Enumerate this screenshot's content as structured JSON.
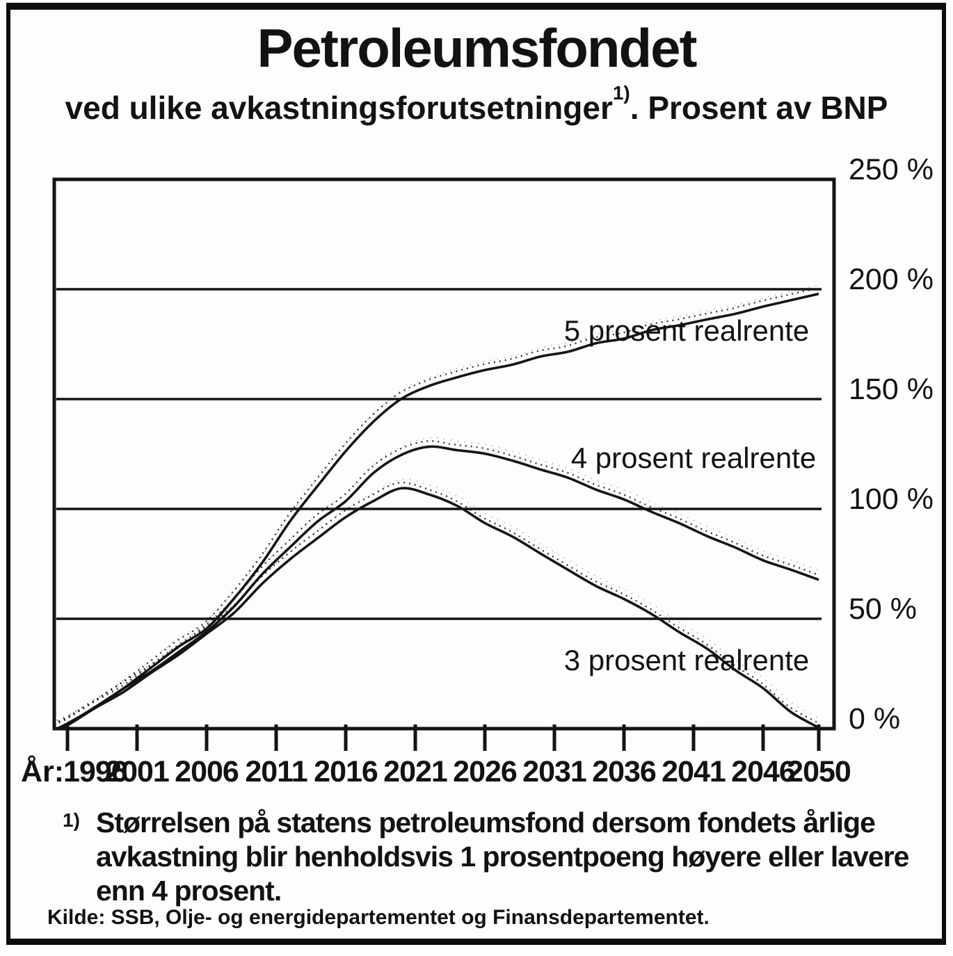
{
  "title": "Petroleumsfondet",
  "subtitle_prefix": "ved ulike avkastningsforutsetninger",
  "subtitle_superscript": "1)",
  "subtitle_suffix": ". Prosent av BNP",
  "x_axis_prefix": "År:",
  "footnote": {
    "marker": "1)",
    "lines": [
      "Størrelsen på statens petroleumsfond dersom fondets årlige",
      "avkastning blir henholdsvis 1 prosentpoeng høyere eller lavere",
      "enn 4 prosent."
    ]
  },
  "source": "Kilde: SSB, Olje- og energidepartementet og Finansdepartementet.",
  "colors": {
    "ink": "#141414",
    "paper": "#fdfdfc"
  },
  "chart_data": {
    "type": "line",
    "title": "Petroleumsfondet",
    "subtitle": "ved ulike avkastningsforutsetninger. Prosent av BNP",
    "xlabel": "År",
    "ylabel": "Prosent av BNP",
    "xlim": [
      1995,
      2051
    ],
    "ylim": [
      0,
      250
    ],
    "grid": "horizontal",
    "legend_position": "inline-labels",
    "x_ticks": [
      1996,
      2001,
      2006,
      2011,
      2016,
      2021,
      2026,
      2031,
      2036,
      2041,
      2046,
      2050
    ],
    "y_ticks_percent": [
      0,
      50,
      100,
      150,
      200,
      250
    ],
    "y_tick_label_suffix": " %",
    "x": [
      1996,
      1998,
      2000,
      2002,
      2004,
      2006,
      2008,
      2010,
      2012,
      2014,
      2016,
      2018,
      2020,
      2022,
      2024,
      2026,
      2028,
      2030,
      2032,
      2034,
      2036,
      2038,
      2040,
      2042,
      2044,
      2046,
      2048,
      2050
    ],
    "series": [
      {
        "name": "5 prosent realrente",
        "values": [
          2,
          10,
          18,
          28,
          37,
          46,
          59,
          76,
          94,
          111,
          126,
          140,
          150,
          156,
          160,
          163,
          166,
          169,
          172,
          175,
          178,
          181,
          184,
          186,
          189,
          192,
          195,
          198
        ]
      },
      {
        "name": "4 prosent realrente",
        "values": [
          2,
          10,
          18,
          26,
          35,
          44,
          56,
          70,
          83,
          94,
          104,
          116,
          125,
          128,
          127,
          125,
          122,
          118,
          114,
          109,
          104,
          99,
          93,
          88,
          82,
          77,
          72,
          68
        ]
      },
      {
        "name": "3 prosent realrente",
        "values": [
          2,
          9,
          17,
          25,
          34,
          43,
          53,
          66,
          77,
          87,
          96,
          104,
          109,
          107,
          101,
          94,
          87,
          80,
          72,
          65,
          59,
          52,
          44,
          36,
          27,
          18,
          8,
          0
        ]
      }
    ],
    "annotations": [
      {
        "text": "5 prosent realrente",
        "x": 2040.5,
        "y": 181
      },
      {
        "text": "4 prosent realrente",
        "x": 2041.0,
        "y": 123
      },
      {
        "text": "3 prosent realrente",
        "x": 2040.5,
        "y": 31
      }
    ]
  }
}
